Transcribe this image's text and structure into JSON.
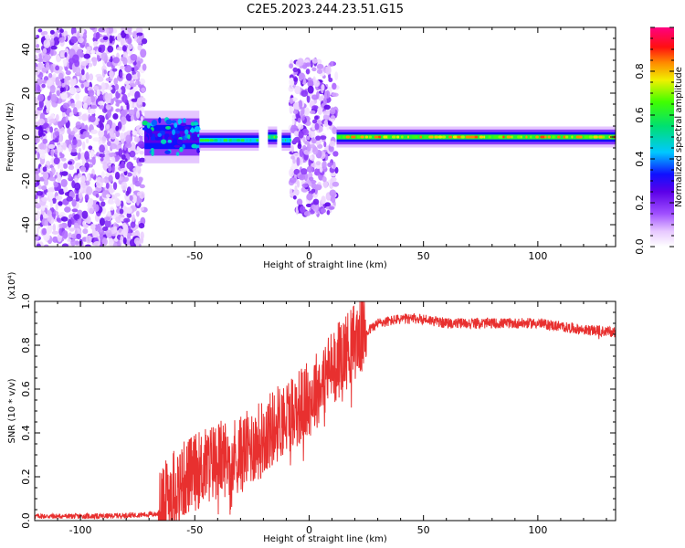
{
  "figure": {
    "title": "C2E5.2023.244.23.51.G15"
  },
  "chart_data": [
    {
      "type": "heatmap",
      "title": "C2E5.2023.244.23.51.G15",
      "xlabel": "Height of straight line (km)",
      "ylabel": "Frequency (Hz)",
      "xlim": [
        -120,
        134
      ],
      "ylim": [
        -50,
        50
      ],
      "x_ticks": [
        -100,
        -50,
        0,
        50,
        100
      ],
      "y_ticks": [
        -40,
        -20,
        0,
        20,
        40
      ],
      "colorbar": {
        "label": "Normalized spectral amplitude",
        "range": [
          0,
          1
        ],
        "ticks": [
          0.0,
          0.2,
          0.4,
          0.6,
          0.8
        ],
        "tick_labels": [
          "0.0",
          "0.2",
          "0.4",
          "0.6",
          "0.8"
        ],
        "colormap": "rainbow (white-purple-blue-cyan-green-yellow-red-magenta)"
      },
      "regions": [
        {
          "x_range": [
            -120,
            -72
          ],
          "freq_center": 0,
          "freq_halfwidth": 50,
          "amplitude": 0.12,
          "pattern": "scattered noise"
        },
        {
          "x_range": [
            -72,
            -48
          ],
          "freq_center": 0,
          "freq_halfwidth": 5,
          "amplitude": 0.35,
          "pattern": "noisy band"
        },
        {
          "x_range": [
            -48,
            -22
          ],
          "freq_center": -1.5,
          "freq_halfwidth": 2,
          "amplitude": 0.6,
          "pattern": "narrow band"
        },
        {
          "x_range": [
            -18,
            -14
          ],
          "freq_center": 0,
          "freq_halfwidth": 2,
          "amplitude": 0.7,
          "pattern": "narrow band"
        },
        {
          "x_range": [
            -12,
            -8
          ],
          "freq_center": -1.5,
          "freq_halfwidth": 2,
          "amplitude": 0.6,
          "pattern": "narrow band"
        },
        {
          "x_range": [
            -8,
            12
          ],
          "freq_center": 0,
          "freq_halfwidth": 35,
          "amplitude": 0.12,
          "pattern": "scattered noise"
        },
        {
          "x_range": [
            12,
            134
          ],
          "freq_center": 0,
          "freq_halfwidth": 2,
          "amplitude": 0.85,
          "pattern": "narrow band"
        }
      ],
      "grid": false
    },
    {
      "type": "line",
      "xlabel": "Height of straight line (km)",
      "ylabel": "SNR (10 * v/v)",
      "y_multiplier": "(x10⁴)",
      "xlim": [
        -120,
        134
      ],
      "ylim": [
        0,
        1.0
      ],
      "x_ticks": [
        -100,
        -50,
        0,
        50,
        100
      ],
      "y_ticks": [
        0.0,
        0.2,
        0.4,
        0.6,
        0.8,
        1.0
      ],
      "y_tick_labels": [
        "0.0",
        "0.2",
        "0.4",
        "0.6",
        "0.8",
        "1.0"
      ],
      "color": "#e8302f",
      "envelope": {
        "x": [
          -120,
          -90,
          -66,
          -60,
          -50,
          -40,
          -30,
          -20,
          -10,
          0,
          10,
          20,
          30,
          40,
          50,
          60,
          80,
          100,
          120,
          134
        ],
        "y": [
          0.02,
          0.02,
          0.03,
          0.15,
          0.22,
          0.28,
          0.3,
          0.38,
          0.48,
          0.55,
          0.7,
          0.82,
          0.9,
          0.92,
          0.92,
          0.9,
          0.9,
          0.9,
          0.87,
          0.86
        ]
      },
      "grid": false
    }
  ]
}
